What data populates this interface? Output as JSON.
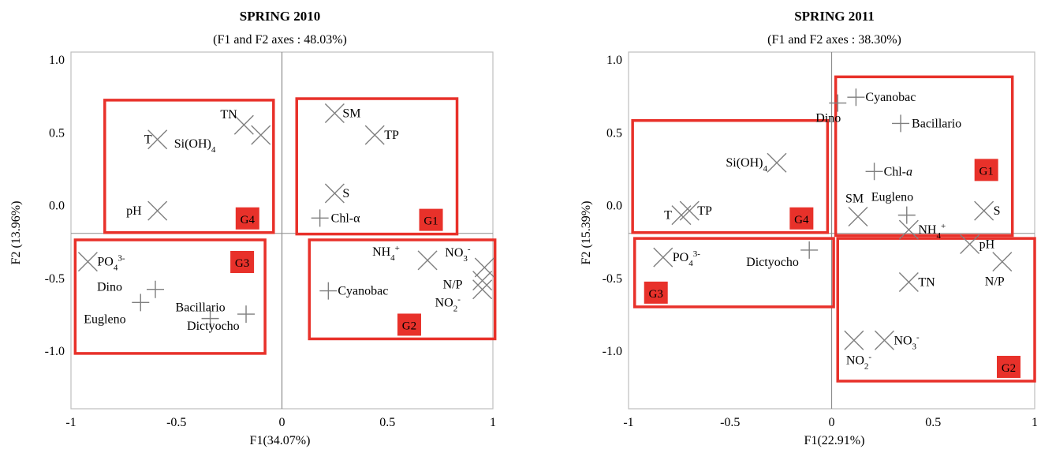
{
  "chart_data": [
    {
      "type": "scatter",
      "title": "SPRING 2010",
      "subtitle": "(F1 and F2 axes : 48.03%)",
      "xlabel": "F1(34.07%)",
      "ylabel": "F2 (13.96%)",
      "xlim": [
        -1,
        1
      ],
      "ylim": [
        -1.4,
        1.05
      ],
      "xticks": [
        {
          "v": -1,
          "label": "-1"
        },
        {
          "v": -0.5,
          "label": "-0.5"
        },
        {
          "v": 0,
          "label": "0"
        },
        {
          "v": 0.5,
          "label": "0.5"
        },
        {
          "v": 1,
          "label": "1"
        }
      ],
      "yticks": [
        {
          "v": 1,
          "label": "1.0"
        },
        {
          "v": 0.5,
          "label": "0.5"
        },
        {
          "v": 0,
          "label": "0.0"
        },
        {
          "v": -0.5,
          "label": "-0.5"
        },
        {
          "v": -1,
          "label": "-1.0"
        }
      ],
      "variables": [
        {
          "label": "SM",
          "x": 0.25,
          "y": 0.63
        },
        {
          "label": "TP",
          "x": 0.44,
          "y": 0.48
        },
        {
          "label": "S",
          "x": 0.25,
          "y": 0.08
        },
        {
          "label": "T",
          "x": -0.59,
          "y": 0.45
        },
        {
          "label": "TN",
          "x": -0.18,
          "y": 0.55
        },
        {
          "label": "Si(OH)4",
          "x": -0.1,
          "y": 0.48
        },
        {
          "label": "pH",
          "x": -0.59,
          "y": -0.04
        },
        {
          "label": "PO43-",
          "x": -0.92,
          "y": -0.39
        },
        {
          "label": "NH4+",
          "x": 0.69,
          "y": -0.38
        },
        {
          "label": "NO3-",
          "x": 0.96,
          "y": -0.43
        },
        {
          "label": "N/P",
          "x": 0.95,
          "y": -0.52
        },
        {
          "label": "NO2-",
          "x": 0.95,
          "y": -0.58
        }
      ],
      "observations": [
        {
          "label": "Chl-α",
          "x": 0.18,
          "y": -0.09
        },
        {
          "label": "Cyanobac",
          "x": 0.22,
          "y": -0.59
        },
        {
          "label": "Dino",
          "x": -0.6,
          "y": -0.58
        },
        {
          "label": "Eugleno",
          "x": -0.67,
          "y": -0.67
        },
        {
          "label": "Bacillario",
          "x": -0.34,
          "y": -0.78
        },
        {
          "label": "Dictyocho",
          "x": -0.17,
          "y": -0.75
        }
      ],
      "groups": [
        {
          "label": "G1",
          "x0": 0.07,
          "x1": 0.83,
          "y0": -0.2,
          "y1": 0.73
        },
        {
          "label": "G2",
          "x0": 0.13,
          "x1": 1.01,
          "y0": -0.92,
          "y1": -0.24
        },
        {
          "label": "G3",
          "x0": -0.98,
          "x1": -0.08,
          "y0": -1.02,
          "y1": -0.24
        },
        {
          "label": "G4",
          "x0": -0.84,
          "x1": -0.04,
          "y0": -0.19,
          "y1": 0.72
        }
      ]
    },
    {
      "type": "scatter",
      "title": "SPRING 2011",
      "subtitle": "(F1 and F2 axes : 38.30%)",
      "xlabel": "F1(22.91%)",
      "ylabel": "F2 (15.39%)",
      "xlim": [
        -1,
        1
      ],
      "ylim": [
        -1.4,
        1.05
      ],
      "xticks": [
        {
          "v": -1,
          "label": "-1"
        },
        {
          "v": -0.5,
          "label": "-0.5"
        },
        {
          "v": 0,
          "label": "0"
        },
        {
          "v": 0.5,
          "label": "0.5"
        },
        {
          "v": 1,
          "label": "1"
        }
      ],
      "yticks": [
        {
          "v": 1,
          "label": "1.0"
        },
        {
          "v": 0.5,
          "label": "0.5"
        },
        {
          "v": 0,
          "label": "0.0"
        },
        {
          "v": -0.5,
          "label": "-0.5"
        },
        {
          "v": -1,
          "label": "-1.0"
        }
      ],
      "variables": [
        {
          "label": "Si(OH)4",
          "x": -0.27,
          "y": 0.29
        },
        {
          "label": "TP",
          "x": -0.7,
          "y": -0.04
        },
        {
          "label": "T",
          "x": -0.74,
          "y": -0.07
        },
        {
          "label": "SM",
          "x": 0.13,
          "y": -0.08
        },
        {
          "label": "S",
          "x": 0.75,
          "y": -0.04
        },
        {
          "label": "NH4+",
          "x": 0.38,
          "y": -0.17
        },
        {
          "label": "pH",
          "x": 0.68,
          "y": -0.27
        },
        {
          "label": "N/P",
          "x": 0.84,
          "y": -0.39
        },
        {
          "label": "PO43-",
          "x": -0.83,
          "y": -0.36
        },
        {
          "label": "TN",
          "x": 0.38,
          "y": -0.53
        },
        {
          "label": "NO2-",
          "x": 0.11,
          "y": -0.93
        },
        {
          "label": "NO3-",
          "x": 0.26,
          "y": -0.93
        }
      ],
      "observations": [
        {
          "label": "Cyanobac",
          "x": 0.12,
          "y": 0.74
        },
        {
          "label": "Dino",
          "x": 0.03,
          "y": 0.7
        },
        {
          "label": "Bacillario",
          "x": 0.34,
          "y": 0.56
        },
        {
          "label": "Chl-a",
          "x": 0.21,
          "y": 0.23
        },
        {
          "label": "Eugleno",
          "x": 0.37,
          "y": -0.07
        },
        {
          "label": "Dictyocho",
          "x": -0.11,
          "y": -0.31
        }
      ],
      "groups": [
        {
          "label": "G1",
          "x0": 0.02,
          "x1": 0.89,
          "y0": -0.21,
          "y1": 0.88
        },
        {
          "label": "G2",
          "x0": 0.03,
          "x1": 1.0,
          "y0": -1.21,
          "y1": -0.23
        },
        {
          "label": "G3",
          "x0": -0.97,
          "x1": 0.01,
          "y0": -0.7,
          "y1": -0.23
        },
        {
          "label": "G4",
          "x0": -0.98,
          "x1": -0.02,
          "y0": -0.19,
          "y1": 0.58
        }
      ]
    }
  ],
  "colors": {
    "group_box": "#e8312a",
    "badge_text": "#000000",
    "marker": "#7f7f7f",
    "frame": "#bfbfbf",
    "axis_line": "#8c8c8c"
  }
}
